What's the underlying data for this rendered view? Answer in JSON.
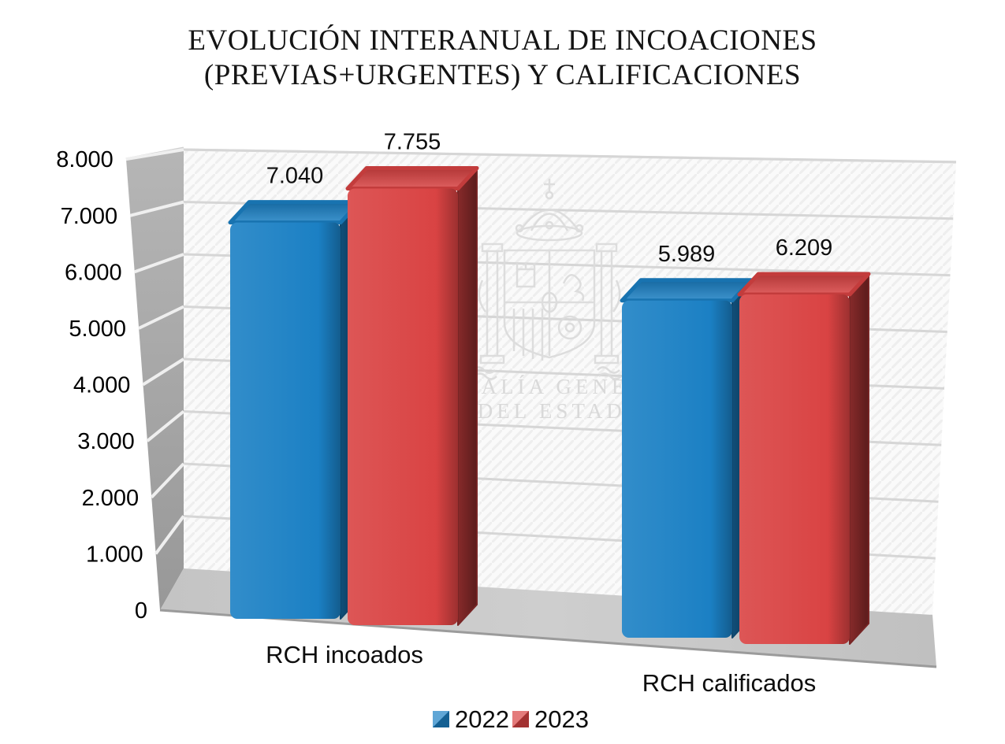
{
  "title": {
    "line1": "EVOLUCIÓN INTERANUAL DE INCOACIONES",
    "line2": "(PREVIAS+URGENTES) Y CALIFICACIONES"
  },
  "watermark": {
    "line1": "FISCALÍA GENERAL",
    "line2": "DEL ESTADO"
  },
  "chart_data": {
    "type": "bar",
    "effect": "3d",
    "title": "EVOLUCIÓN INTERANUAL DE INCOACIONES (PREVIAS+URGENTES) Y CALIFICACIONES",
    "categories": [
      "RCH incoados",
      "RCH calificados"
    ],
    "series": [
      {
        "name": "2022",
        "color": "#1b80c4",
        "values": [
          7040,
          5989
        ],
        "labels": [
          "7.040",
          "5.989"
        ]
      },
      {
        "name": "2023",
        "color": "#d94343",
        "values": [
          7755,
          6209
        ],
        "labels": [
          "7.755",
          "6.209"
        ]
      }
    ],
    "ylabel": "",
    "xlabel": "",
    "ylim": [
      0,
      8000
    ],
    "ytick_step": 1000,
    "yticks": [
      "0",
      "1.000",
      "2.000",
      "3.000",
      "4.000",
      "5.000",
      "6.000",
      "7.000",
      "8.000"
    ],
    "grid": true,
    "legend_position": "bottom"
  }
}
